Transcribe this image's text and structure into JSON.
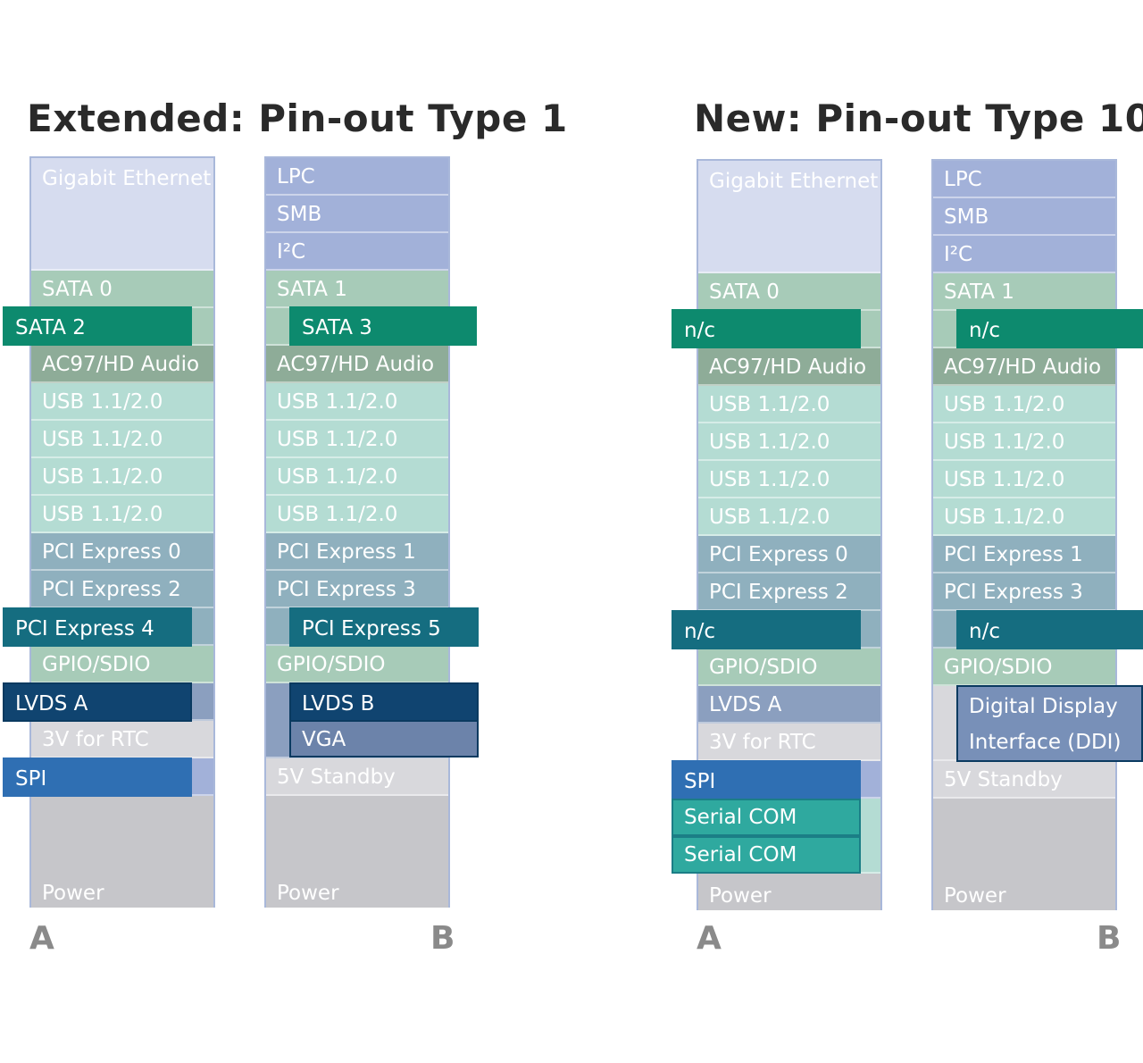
{
  "diagram": {
    "left": {
      "title": "Extended: Pin-out Type 1",
      "row_a": {
        "label": "A",
        "cells": {
          "gbe": "Gigabit Ethernet",
          "sata": "SATA 0",
          "audio": "AC97/HD Audio",
          "usb": [
            "USB 1.1/2.0",
            "USB 1.1/2.0",
            "USB 1.1/2.0",
            "USB 1.1/2.0"
          ],
          "pcie": [
            "PCI Express 0",
            "PCI Express 2"
          ],
          "gpio": "GPIO/SDIO",
          "rtc": "3V for RTC",
          "power": "Power"
        },
        "overlays": {
          "sata": "SATA 2",
          "pcie": "PCI Express 4",
          "lvds": "LVDS A",
          "spi": "SPI"
        }
      },
      "row_b": {
        "label": "B",
        "cells": {
          "lpc": "LPC",
          "smb": "SMB",
          "i2c": "I²C",
          "sata": "SATA 1",
          "audio": "AC97/HD Audio",
          "usb": [
            "USB 1.1/2.0",
            "USB 1.1/2.0",
            "USB 1.1/2.0",
            "USB 1.1/2.0"
          ],
          "pcie": [
            "PCI Express 1",
            "PCI Express 3"
          ],
          "gpio": "GPIO/SDIO",
          "standby": "5V Standby",
          "power": "Power"
        },
        "overlays": {
          "sata": "SATA 3",
          "pcie": "PCI Express 5",
          "lvds": "LVDS B",
          "vga": "VGA"
        }
      }
    },
    "right": {
      "title": "New: Pin-out Type 10",
      "row_a": {
        "label": "A",
        "cells": {
          "gbe": "Gigabit Ethernet",
          "sata": "SATA 0",
          "audio": "AC97/HD Audio",
          "usb": [
            "USB 1.1/2.0",
            "USB 1.1/2.0",
            "USB 1.1/2.0",
            "USB 1.1/2.0"
          ],
          "pcie": [
            "PCI Express 0",
            "PCI Express 2"
          ],
          "gpio": "GPIO/SDIO",
          "lvds": "LVDS A",
          "rtc": "3V for RTC",
          "power": "Power"
        },
        "overlays": {
          "sata": "n/c",
          "pcie": "n/c",
          "spi": "SPI",
          "serial": [
            "Serial COM",
            "Serial COM"
          ]
        }
      },
      "row_b": {
        "label": "B",
        "cells": {
          "lpc": "LPC",
          "smb": "SMB",
          "i2c": "I²C",
          "sata": "SATA 1",
          "audio": "AC97/HD Audio",
          "usb": [
            "USB 1.1/2.0",
            "USB 1.1/2.0",
            "USB 1.1/2.0",
            "USB 1.1/2.0"
          ],
          "pcie": [
            "PCI Express 1",
            "PCI Express 3"
          ],
          "gpio": "GPIO/SDIO",
          "standby": "5V Standby",
          "power": "Power"
        },
        "overlays": {
          "sata": "n/c",
          "pcie": "n/c",
          "ddi": [
            "Digital Display",
            "Interface (DDI)"
          ]
        }
      }
    },
    "colors": {
      "sata_overlay": "#0d8a6e",
      "pcie_overlay": "#156d80",
      "lvds_overlay": "#104470",
      "spi_overlay": "#2f6fb3",
      "serial_overlay": "#2fa99f"
    }
  }
}
